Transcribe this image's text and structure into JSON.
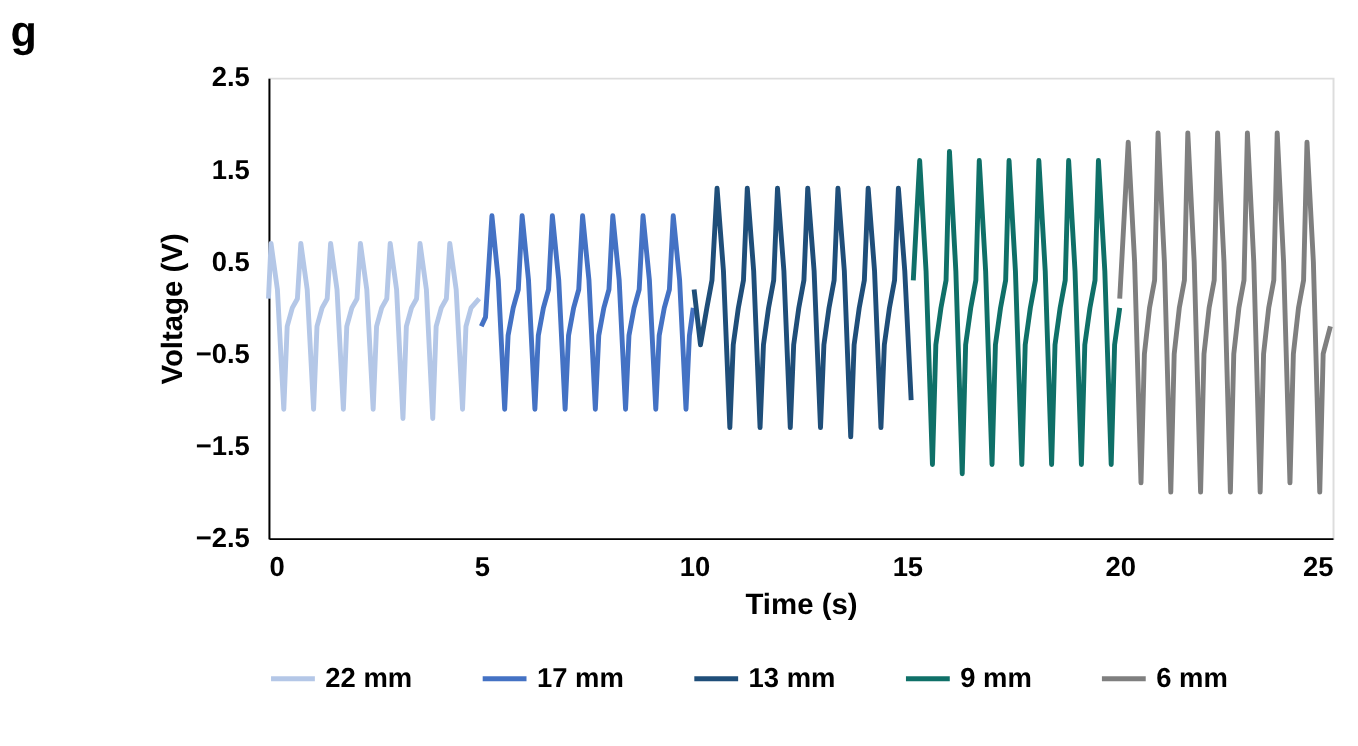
{
  "chart_data": {
    "type": "line",
    "title": "g",
    "xlabel": "Time (s)",
    "ylabel": "Voltage (V)",
    "xlim": [
      0,
      25
    ],
    "xticks": [
      0,
      5,
      10,
      15,
      20,
      25
    ],
    "ylim": [
      -2.5,
      2.5
    ],
    "yticks": [
      -2.5,
      -1.5,
      -0.5,
      0.5,
      1.5,
      2.5
    ],
    "grid": false,
    "legend": "bottom",
    "marker": "none",
    "line_style": "solid",
    "series": [
      {
        "name": "22 mm",
        "color": "#b4c7e7",
        "x": [
          0.0,
          0.06,
          0.21,
          0.36,
          0.44,
          0.56,
          0.68,
          0.76,
          0.91,
          1.06,
          1.14,
          1.26,
          1.38,
          1.46,
          1.61,
          1.76,
          1.84,
          1.96,
          2.08,
          2.16,
          2.31,
          2.46,
          2.54,
          2.66,
          2.78,
          2.86,
          3.01,
          3.16,
          3.24,
          3.36,
          3.48,
          3.56,
          3.71,
          3.86,
          3.94,
          4.06,
          4.18,
          4.26,
          4.41,
          4.56,
          4.64,
          4.76,
          4.95
        ],
        "values": [
          0.1,
          0.7,
          0.2,
          -1.1,
          -0.2,
          0,
          0.1,
          0.7,
          0.2,
          -1.1,
          -0.2,
          0,
          0.1,
          0.7,
          0.2,
          -1.1,
          -0.2,
          0,
          0.1,
          0.7,
          0.2,
          -1.1,
          -0.2,
          0,
          0.1,
          0.7,
          0.2,
          -1.2,
          -0.2,
          0,
          0.1,
          0.7,
          0.2,
          -1.2,
          -0.2,
          0,
          0.1,
          0.7,
          0.2,
          -1.1,
          -0.2,
          0,
          0.1
        ]
      },
      {
        "name": "17 mm",
        "color": "#4472c4",
        "x": [
          5.0,
          5.1,
          5.25,
          5.4,
          5.55,
          5.63,
          5.75,
          5.87,
          5.96,
          6.11,
          6.26,
          6.34,
          6.46,
          6.58,
          6.67,
          6.82,
          6.97,
          7.05,
          7.17,
          7.29,
          7.38,
          7.53,
          7.68,
          7.76,
          7.88,
          8.0,
          8.09,
          8.24,
          8.39,
          8.47,
          8.59,
          8.71,
          8.8,
          8.95,
          9.1,
          9.18,
          9.3,
          9.42,
          9.51,
          9.66,
          9.81,
          9.89,
          9.98
        ],
        "values": [
          -0.2,
          -0.1,
          1.0,
          0.3,
          -1.1,
          -0.3,
          0,
          0.2,
          1.0,
          0.3,
          -1.1,
          -0.3,
          0,
          0.2,
          1.0,
          0.3,
          -1.1,
          -0.3,
          0,
          0.2,
          1.0,
          0.3,
          -1.1,
          -0.3,
          0,
          0.2,
          1.0,
          0.3,
          -1.1,
          -0.3,
          0,
          0.2,
          1.0,
          0.3,
          -1.1,
          -0.3,
          0,
          0.2,
          1.0,
          0.3,
          -1.1,
          -0.3,
          0
        ]
      },
      {
        "name": "13 mm",
        "color": "#1f4e79",
        "x": [
          10.0,
          10.15,
          10.3,
          10.42,
          10.54,
          10.69,
          10.84,
          10.92,
          11.04,
          11.16,
          11.25,
          11.4,
          11.55,
          11.63,
          11.75,
          11.87,
          11.96,
          12.11,
          12.26,
          12.34,
          12.46,
          12.58,
          12.67,
          12.82,
          12.97,
          13.05,
          13.17,
          13.29,
          13.38,
          13.53,
          13.68,
          13.76,
          13.88,
          14.0,
          14.09,
          14.24,
          14.39,
          14.47,
          14.59,
          14.71,
          14.8,
          14.95,
          15.1
        ],
        "values": [
          0.2,
          -0.4,
          0,
          0.3,
          1.3,
          0.4,
          -1.3,
          -0.4,
          0,
          0.3,
          1.3,
          0.4,
          -1.3,
          -0.4,
          0,
          0.3,
          1.3,
          0.4,
          -1.3,
          -0.4,
          0,
          0.3,
          1.3,
          0.4,
          -1.3,
          -0.4,
          0,
          0.3,
          1.3,
          0.4,
          -1.4,
          -0.4,
          0,
          0.3,
          1.3,
          0.4,
          -1.3,
          -0.4,
          0,
          0.3,
          1.3,
          0.4,
          -1.0
        ]
      },
      {
        "name": "9 mm",
        "color": "#0f7068",
        "x": [
          15.15,
          15.3,
          15.45,
          15.6,
          15.68,
          15.8,
          15.92,
          16.0,
          16.15,
          16.3,
          16.38,
          16.5,
          16.62,
          16.7,
          16.85,
          17.0,
          17.08,
          17.2,
          17.32,
          17.4,
          17.55,
          17.7,
          17.78,
          17.9,
          18.02,
          18.1,
          18.25,
          18.4,
          18.48,
          18.6,
          18.72,
          18.8,
          18.95,
          19.1,
          19.18,
          19.3,
          19.42,
          19.5,
          19.65,
          19.8,
          19.88,
          20.0
        ],
        "values": [
          0.3,
          1.6,
          0.4,
          -1.7,
          -0.4,
          0,
          0.3,
          1.7,
          0.4,
          -1.8,
          -0.4,
          0,
          0.3,
          1.6,
          0.4,
          -1.7,
          -0.4,
          0,
          0.3,
          1.6,
          0.4,
          -1.7,
          -0.4,
          0,
          0.3,
          1.6,
          0.4,
          -1.7,
          -0.4,
          0,
          0.3,
          1.6,
          0.4,
          -1.7,
          -0.4,
          0,
          0.3,
          1.6,
          0.4,
          -1.7,
          -0.4,
          0
        ]
      },
      {
        "name": "6 mm",
        "color": "#7f7f7f",
        "x": [
          20.0,
          20.2,
          20.35,
          20.5,
          20.58,
          20.7,
          20.82,
          20.9,
          21.05,
          21.2,
          21.28,
          21.4,
          21.52,
          21.6,
          21.75,
          21.9,
          21.98,
          22.1,
          22.22,
          22.3,
          22.45,
          22.6,
          22.68,
          22.8,
          22.92,
          23.0,
          23.15,
          23.3,
          23.38,
          23.5,
          23.62,
          23.7,
          23.85,
          24.0,
          24.08,
          24.2,
          24.32,
          24.4,
          24.55,
          24.7,
          24.78,
          24.95
        ],
        "values": [
          0.1,
          1.8,
          0.5,
          -1.9,
          -0.5,
          0,
          0.3,
          1.9,
          0.5,
          -2.0,
          -0.5,
          0,
          0.3,
          1.9,
          0.5,
          -2.0,
          -0.5,
          0,
          0.3,
          1.9,
          0.5,
          -2.0,
          -0.5,
          0,
          0.3,
          1.9,
          0.5,
          -2.0,
          -0.5,
          0,
          0.3,
          1.9,
          0.5,
          -1.9,
          -0.5,
          0,
          0.3,
          1.8,
          0.5,
          -2.0,
          -0.5,
          -0.2
        ]
      }
    ]
  }
}
